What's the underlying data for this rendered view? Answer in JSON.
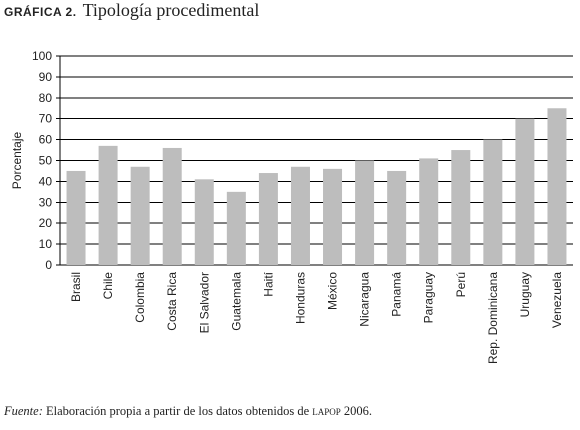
{
  "header": {
    "label": "GRÁFICA 2.",
    "title": "Tipología procedimental"
  },
  "source": {
    "lead": "Fuente:",
    "text": "Elaboración propia a partir de los datos obtenidos de",
    "org": "lapop",
    "year": "2006."
  },
  "colors": {
    "bar": "#bdbdbd",
    "grid": "#000000"
  },
  "chart_data": {
    "type": "bar",
    "title": "Tipología procedimental",
    "xlabel": "",
    "ylabel": "Porcentaje",
    "ylim": [
      0,
      100
    ],
    "yticks": [
      0,
      10,
      20,
      30,
      40,
      50,
      60,
      70,
      80,
      90,
      100
    ],
    "grid": true,
    "categories": [
      "Brasil",
      "Chile",
      "Colombia",
      "Costa Rica",
      "El Salvador",
      "Guatemala",
      "Haití",
      "Honduras",
      "México",
      "Nicaragua",
      "Panamá",
      "Paraguay",
      "Perú",
      "Rep. Dominicana",
      "Uruguay",
      "Venezuela"
    ],
    "values": [
      45,
      57,
      47,
      56,
      41,
      35,
      44,
      47,
      46,
      50,
      45,
      51,
      55,
      60,
      70,
      75
    ]
  }
}
